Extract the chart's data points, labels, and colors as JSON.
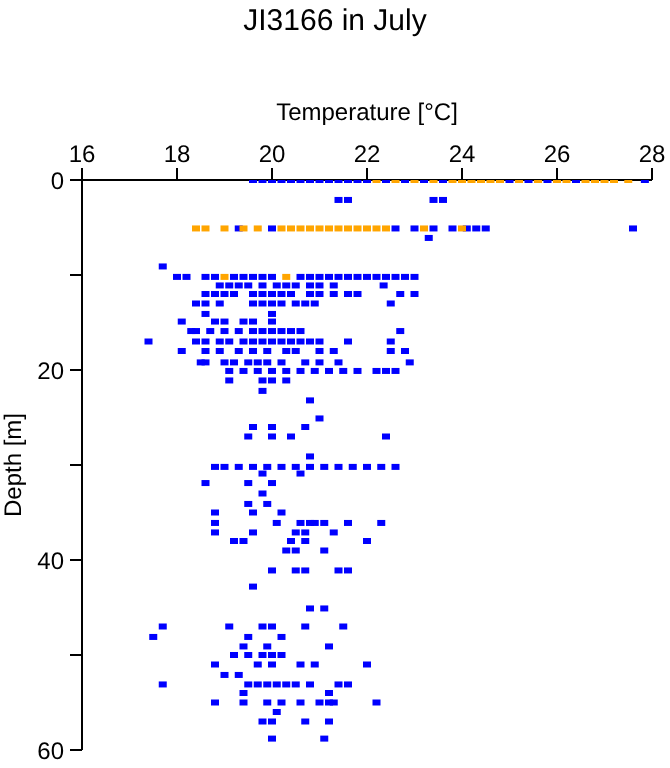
{
  "chart_data": {
    "type": "scatter",
    "title": "JI3166 in July",
    "xlabel": "Temperature [°C]",
    "ylabel": "Depth [m]",
    "xlim": [
      16,
      28
    ],
    "xticks": [
      16,
      18,
      20,
      22,
      24,
      26,
      28
    ],
    "ylim": [
      60,
      0
    ],
    "yticks": [
      0,
      {
        "value": 10,
        "label": null
      },
      20,
      {
        "value": 30,
        "label": null
      },
      40,
      {
        "value": 50,
        "label": null
      },
      60
    ],
    "marker": "square",
    "grid": false,
    "series": [
      {
        "color": "#0000ff",
        "x": [
          19.6,
          19.8,
          20.0,
          20.2,
          20.4,
          20.6,
          20.8,
          21.0,
          21.2,
          21.4,
          21.6,
          21.8,
          22.0,
          22.4,
          22.8,
          23.2,
          23.6,
          25.0,
          25.4,
          25.8,
          26.4,
          27.85,
          21.4,
          21.6,
          23.4,
          23.6,
          19.3,
          20.0,
          22.6,
          23.0,
          23.4,
          23.8,
          24.1,
          24.3,
          24.5,
          27.6,
          23.3,
          17.7,
          18.0,
          18.2,
          18.6,
          18.8,
          19.2,
          19.4,
          19.6,
          19.8,
          20.0,
          20.6,
          20.8,
          21.0,
          21.2,
          21.4,
          21.6,
          21.8,
          22.0,
          22.2,
          22.4,
          22.6,
          22.8,
          23.0,
          18.9,
          19.1,
          19.3,
          19.5,
          19.8,
          20.1,
          20.3,
          20.5,
          20.8,
          21.0,
          21.3,
          22.35,
          18.6,
          18.8,
          19.0,
          19.2,
          19.6,
          19.8,
          20.0,
          20.2,
          20.4,
          20.8,
          21.0,
          21.3,
          21.6,
          21.8,
          22.7,
          23.0,
          18.4,
          18.6,
          18.9,
          19.6,
          19.8,
          20.0,
          20.2,
          20.5,
          20.7,
          20.9,
          22.5,
          18.6,
          20.0,
          18.1,
          18.8,
          19.0,
          19.4,
          19.6,
          20.0,
          18.3,
          18.4,
          18.7,
          19.0,
          19.3,
          19.6,
          19.8,
          20.0,
          20.2,
          20.4,
          20.6,
          22.7,
          17.4,
          18.4,
          18.6,
          18.9,
          19.1,
          19.4,
          19.6,
          19.8,
          20.0,
          20.2,
          20.4,
          20.6,
          20.8,
          21.0,
          21.6,
          22.5,
          18.1,
          18.6,
          18.9,
          19.3,
          19.6,
          19.9,
          20.3,
          20.5,
          21.0,
          21.3,
          22.5,
          22.8,
          18.5,
          18.6,
          19.0,
          19.2,
          19.5,
          19.7,
          19.9,
          20.2,
          20.7,
          21.0,
          21.4,
          22.9,
          19.1,
          19.4,
          19.7,
          20.0,
          20.3,
          20.6,
          20.9,
          21.2,
          21.5,
          21.8,
          22.2,
          22.4,
          22.6,
          19.1,
          19.8,
          20.0,
          20.3,
          19.8,
          20.8,
          21.0,
          19.6,
          20.0,
          20.7,
          19.5,
          20.0,
          20.4,
          22.4,
          20.8,
          18.8,
          19.0,
          19.3,
          19.6,
          19.9,
          20.2,
          20.5,
          20.8,
          21.1,
          21.4,
          21.7,
          22.0,
          22.3,
          22.6,
          19.8,
          20.6,
          18.6,
          19.5,
          20.0,
          19.8,
          19.5,
          19.9,
          18.8,
          19.6,
          20.2,
          18.8,
          20.1,
          20.6,
          20.8,
          20.9,
          21.1,
          21.6,
          22.3,
          18.8,
          19.6,
          20.5,
          20.7,
          21.3,
          19.2,
          19.4,
          20.4,
          20.7,
          22.0,
          20.3,
          20.5,
          21.1,
          20.0,
          20.5,
          20.7,
          21.4,
          21.6,
          19.6,
          20.8,
          21.1,
          17.7,
          19.1,
          19.8,
          20.0,
          20.7,
          21.5,
          17.5,
          19.5,
          20.2,
          19.4,
          19.9,
          21.2,
          19.2,
          19.5,
          19.8,
          20.0,
          20.2,
          18.8,
          19.7,
          20.0,
          20.6,
          20.9,
          22.0,
          19.0,
          19.3,
          17.7,
          19.5,
          19.7,
          19.9,
          20.1,
          20.3,
          20.5,
          20.8,
          21.4,
          21.6,
          19.4,
          21.2,
          18.8,
          19.4,
          19.9,
          20.2,
          20.6,
          21.0,
          21.2,
          21.3,
          22.2,
          20.1,
          19.8,
          20.0,
          20.7,
          21.2,
          20.0,
          21.1
        ],
        "values": [
          0,
          0,
          0,
          0,
          0,
          0,
          0,
          0,
          0,
          0,
          0,
          0,
          0,
          0,
          0,
          0,
          0,
          0,
          0,
          0,
          0,
          0,
          2.1,
          2.1,
          2.1,
          2.1,
          5.1,
          5.1,
          5.1,
          5.1,
          5.1,
          5.1,
          5.1,
          5.1,
          5.1,
          5.1,
          6.1,
          9.1,
          10.2,
          10.2,
          10.2,
          10.2,
          10.2,
          10.2,
          10.2,
          10.2,
          10.2,
          10.2,
          10.2,
          10.2,
          10.2,
          10.2,
          10.2,
          10.2,
          10.2,
          10.2,
          10.2,
          10.2,
          10.2,
          10.2,
          11.1,
          11.1,
          11.1,
          11.1,
          11.1,
          11.1,
          11.1,
          11.1,
          11.1,
          11.1,
          11.1,
          11.1,
          12.0,
          12.0,
          12.0,
          12.0,
          12.0,
          12.0,
          12.0,
          12.0,
          12.0,
          12.0,
          12.0,
          12.0,
          12.0,
          12.0,
          12.0,
          12.0,
          13.0,
          13.0,
          13.0,
          13.0,
          13.0,
          13.0,
          13.0,
          13.0,
          13.0,
          13.0,
          13.0,
          14.1,
          14.1,
          14.9,
          14.9,
          14.9,
          14.9,
          14.9,
          14.9,
          15.9,
          15.9,
          15.9,
          15.9,
          15.9,
          15.9,
          15.9,
          15.9,
          15.9,
          15.9,
          15.9,
          15.9,
          17.0,
          17.0,
          17.0,
          17.0,
          17.0,
          17.0,
          17.0,
          17.0,
          17.0,
          17.0,
          17.0,
          17.0,
          17.0,
          17.0,
          17.0,
          17.0,
          18.0,
          18.0,
          18.0,
          18.0,
          18.0,
          18.0,
          18.0,
          18.0,
          18.0,
          18.0,
          18.0,
          18.0,
          19.2,
          19.2,
          19.2,
          19.2,
          19.2,
          19.2,
          19.2,
          19.2,
          19.2,
          19.2,
          19.2,
          19.2,
          20.1,
          20.1,
          20.1,
          20.1,
          20.1,
          20.1,
          20.1,
          20.1,
          20.1,
          20.1,
          20.1,
          20.1,
          20.1,
          21.1,
          21.1,
          21.1,
          21.1,
          22.2,
          23.2,
          25.1,
          26.0,
          26.0,
          26.0,
          27.0,
          27.0,
          27.0,
          27.0,
          29.1,
          30.2,
          30.2,
          30.2,
          30.2,
          30.2,
          30.2,
          30.2,
          30.2,
          30.2,
          30.2,
          30.2,
          30.2,
          30.2,
          30.2,
          30.9,
          30.9,
          31.9,
          31.9,
          31.9,
          33.0,
          34.1,
          34.1,
          35.0,
          35.0,
          35.0,
          36.1,
          36.1,
          36.1,
          36.1,
          36.1,
          36.1,
          36.1,
          36.1,
          37.1,
          37.1,
          37.1,
          37.1,
          37.1,
          38.0,
          38.0,
          38.0,
          38.0,
          38.0,
          39.0,
          39.0,
          39.0,
          41.1,
          41.1,
          41.1,
          41.1,
          41.1,
          42.8,
          45.1,
          45.1,
          47.0,
          47.0,
          47.0,
          47.0,
          47.0,
          47.0,
          48.1,
          48.1,
          48.1,
          49.1,
          49.1,
          49.1,
          50.0,
          50.0,
          50.0,
          50.0,
          50.0,
          51.0,
          51.0,
          51.0,
          51.0,
          51.0,
          51.0,
          52.1,
          52.1,
          53.1,
          53.1,
          53.1,
          53.1,
          53.1,
          53.1,
          53.1,
          53.1,
          53.1,
          53.1,
          54.0,
          54.0,
          55.0,
          55.0,
          55.0,
          55.0,
          55.0,
          55.0,
          55.0,
          55.0,
          55.0,
          56.0,
          57.0,
          57.0,
          57.0,
          57.0,
          58.8,
          58.8
        ]
      },
      {
        "color": "#ffa500",
        "x": [
          22.2,
          22.6,
          23.0,
          23.4,
          23.8,
          24.0,
          24.2,
          24.4,
          24.6,
          24.8,
          25.2,
          25.6,
          26.0,
          26.2,
          26.6,
          26.8,
          27.0,
          27.2,
          27.5,
          18.4,
          18.6,
          19.0,
          19.4,
          19.7,
          20.2,
          20.4,
          20.6,
          20.8,
          21.0,
          21.2,
          21.4,
          21.6,
          21.8,
          22.0,
          22.2,
          22.4,
          23.2,
          24.0,
          19.0,
          20.3
        ],
        "values": [
          0,
          0,
          0,
          0,
          0,
          0,
          0,
          0,
          0,
          0,
          0,
          0,
          0,
          0,
          0,
          0,
          0,
          0,
          0,
          5.1,
          5.1,
          5.1,
          5.1,
          5.1,
          5.1,
          5.1,
          5.1,
          5.1,
          5.1,
          5.1,
          5.1,
          5.1,
          5.1,
          5.1,
          5.1,
          5.1,
          5.1,
          5.1,
          10.2,
          10.2
        ]
      }
    ]
  }
}
